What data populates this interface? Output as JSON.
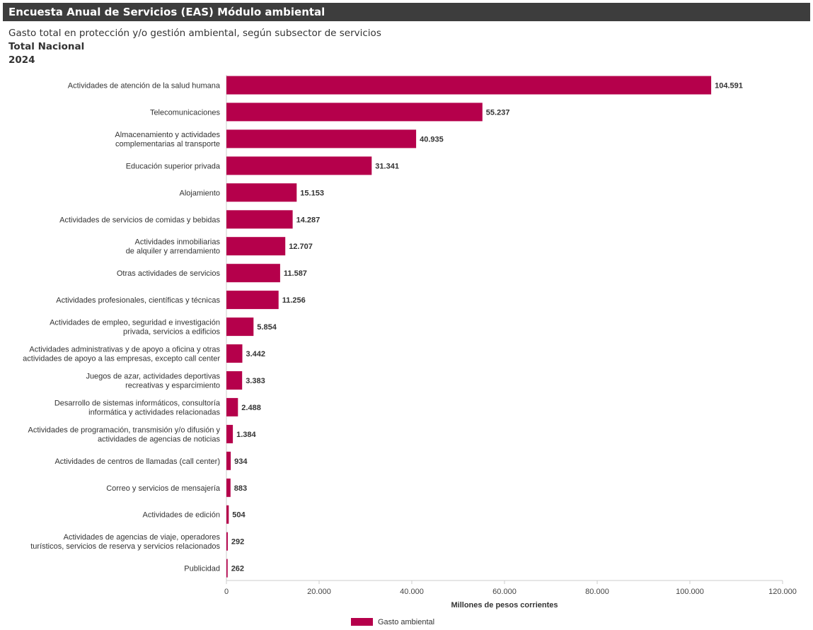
{
  "header": {
    "title": "Encuesta Anual de Servicios (EAS) Módulo ambiental",
    "subtitle": "Gasto total en protección y/o gestión ambiental, según subsector de servicios",
    "region": "Total Nacional",
    "year": "2024"
  },
  "colors": {
    "bar": "#b5004b",
    "banner": "#3d3d3d"
  },
  "chart_data": {
    "type": "bar",
    "orientation": "horizontal",
    "categories": [
      [
        "Actividades de atención de la salud humana"
      ],
      [
        "Telecomunicaciones"
      ],
      [
        "Almacenamiento y actividades",
        "complementarias al transporte"
      ],
      [
        "Educación superior privada"
      ],
      [
        "Alojamiento"
      ],
      [
        "Actividades de servicios de comidas y bebidas"
      ],
      [
        "Actividades inmobiliarias",
        "de alquiler y arrendamiento"
      ],
      [
        "Otras actividades de servicios"
      ],
      [
        "Actividades profesionales, científicas y técnicas"
      ],
      [
        "Actividades de empleo, seguridad e investigación",
        "privada, servicios a edificios"
      ],
      [
        "Actividades administrativas y de apoyo a oficina y otras",
        "actividades de apoyo a las empresas, excepto call center"
      ],
      [
        "Juegos de azar, actividades deportivas",
        "recreativas y esparcimiento"
      ],
      [
        "Desarrollo de sistemas informáticos, consultoría",
        "informática y actividades relacionadas"
      ],
      [
        "Actividades de programación, transmisión y/o difusión y",
        "actividades de agencias de noticias"
      ],
      [
        "Actividades de centros de llamadas (call center)"
      ],
      [
        "Correo y servicios de mensajería"
      ],
      [
        "Actividades de edición"
      ],
      [
        "Actividades de agencias de viaje, operadores",
        "turísticos, servicios de reserva y servicios relacionados"
      ],
      [
        "Publicidad"
      ]
    ],
    "values": [
      104591,
      55237,
      40935,
      31341,
      15153,
      14287,
      12707,
      11587,
      11256,
      5854,
      3442,
      3383,
      2488,
      1384,
      934,
      883,
      504,
      292,
      262
    ],
    "value_labels": [
      "104.591",
      "55.237",
      "40.935",
      "31.341",
      "15.153",
      "14.287",
      "12.707",
      "11.587",
      "11.256",
      "5.854",
      "3.442",
      "3.383",
      "2.488",
      "1.384",
      "934",
      "883",
      "504",
      "292",
      "262"
    ],
    "series": [
      {
        "name": "Gasto ambiental"
      }
    ],
    "xlabel": "Millones de pesos corrientes",
    "xlim": [
      0,
      120000
    ],
    "xticks": [
      0,
      20000,
      40000,
      60000,
      80000,
      100000,
      120000
    ],
    "xtick_labels": [
      "0",
      "20.000",
      "40.000",
      "60.000",
      "80.000",
      "100.000",
      "120.000"
    ],
    "grid": false,
    "legend_position": "bottom-center"
  }
}
